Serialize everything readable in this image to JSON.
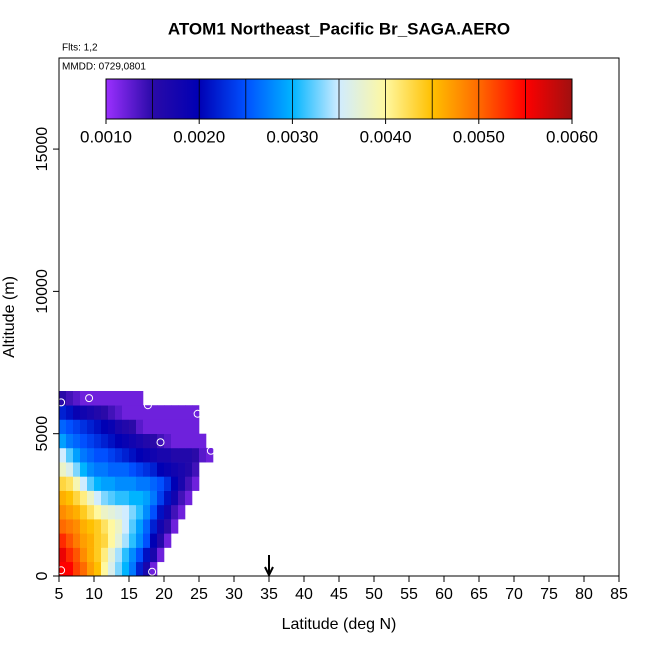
{
  "chart_data": {
    "type": "heatmap",
    "title": "ATOM1 Northeast_Pacific Br_SAGA.AERO",
    "annotations": [
      "Flts: 1,2",
      "MMDD: 0729,0801"
    ],
    "xlabel": "Latitude (deg N)",
    "ylabel": "Altitude (m)",
    "xlim": [
      5,
      85
    ],
    "ylim": [
      0,
      18200
    ],
    "xticks": [
      5,
      10,
      15,
      20,
      25,
      30,
      35,
      40,
      45,
      50,
      55,
      60,
      65,
      70,
      75,
      80,
      85
    ],
    "yticks": [
      0,
      5000,
      10000,
      15000
    ],
    "x": [
      5.5,
      6.5,
      7.5,
      8.5,
      9.5,
      10.5,
      11.5,
      12.5,
      13.5,
      14.5,
      15.5,
      16.5,
      17.5,
      18.5,
      19.5,
      20.5,
      21.5,
      22.5,
      23.5,
      24.5,
      25.5,
      26.5
    ],
    "y": [
      250,
      750,
      1250,
      1750,
      2250,
      2750,
      3250,
      3750,
      4250,
      4750,
      5250,
      5750,
      6250
    ],
    "z": [
      [
        0.0055,
        0.0055,
        0.0052,
        0.005,
        0.0047,
        0.0045,
        0.004,
        0.0036,
        0.0033,
        0.003,
        0.0027,
        0.0022,
        0.0017,
        0.0012,
        null,
        null,
        null,
        null,
        null,
        null,
        null,
        null
      ],
      [
        0.0056,
        0.0053,
        0.0051,
        0.0048,
        0.0046,
        0.0044,
        0.0041,
        0.0037,
        0.0034,
        0.0031,
        0.0028,
        0.0025,
        0.0021,
        0.0017,
        0.0012,
        null,
        null,
        null,
        null,
        null,
        null,
        null
      ],
      [
        0.0053,
        0.0051,
        0.0049,
        0.0047,
        0.0046,
        0.0044,
        0.0043,
        0.004,
        0.0037,
        0.0034,
        0.0031,
        0.0028,
        0.0025,
        0.002,
        0.0016,
        0.0012,
        null,
        null,
        null,
        null,
        null,
        null
      ],
      [
        0.005,
        0.0049,
        0.0048,
        0.0046,
        0.0045,
        0.0044,
        0.0042,
        0.004,
        0.0038,
        0.0035,
        0.0032,
        0.0029,
        0.0026,
        0.0022,
        0.0018,
        0.0015,
        0.0012,
        null,
        null,
        null,
        null,
        null
      ],
      [
        0.0048,
        0.0047,
        0.0046,
        0.0044,
        0.0042,
        0.004,
        0.0038,
        0.0037,
        0.0036,
        0.0035,
        0.0033,
        0.0031,
        0.0028,
        0.0025,
        0.0021,
        0.0018,
        0.0014,
        0.0012,
        null,
        null,
        null,
        null
      ],
      [
        0.0046,
        0.0045,
        0.0043,
        0.0041,
        0.0038,
        0.0035,
        0.0033,
        0.0032,
        0.0031,
        0.0031,
        0.003,
        0.003,
        0.0029,
        0.0027,
        0.0024,
        0.0021,
        0.0018,
        0.0014,
        0.0012,
        null,
        null,
        null
      ],
      [
        0.0043,
        0.0042,
        0.0039,
        0.0035,
        0.0032,
        0.003,
        0.0029,
        0.0029,
        0.0028,
        0.0028,
        0.0028,
        0.0027,
        0.0027,
        0.0026,
        0.0025,
        0.0023,
        0.002,
        0.0017,
        0.0014,
        0.0012,
        null,
        null
      ],
      [
        0.0038,
        0.0036,
        0.0033,
        0.003,
        0.0028,
        0.0027,
        0.0027,
        0.0026,
        0.0026,
        0.0026,
        0.0025,
        0.0024,
        0.0023,
        0.0022,
        0.002,
        0.0019,
        0.0018,
        0.0017,
        0.0016,
        0.0014,
        null,
        null
      ],
      [
        0.0035,
        0.0032,
        0.0029,
        0.0027,
        0.0026,
        0.0025,
        0.0025,
        0.0024,
        0.0023,
        0.0022,
        0.0021,
        0.002,
        0.0019,
        0.0018,
        0.0017,
        0.0017,
        0.0016,
        0.0016,
        0.0016,
        0.0015,
        0.0013,
        0.0012
      ],
      [
        0.0029,
        0.0027,
        0.0026,
        0.0025,
        0.0024,
        0.0023,
        0.0022,
        0.0021,
        0.002,
        0.0019,
        0.0018,
        0.0017,
        0.0016,
        0.0015,
        0.0014,
        0.0013,
        0.0012,
        0.0012,
        0.0012,
        0.0012,
        0.0012,
        null
      ],
      [
        0.0026,
        0.0025,
        0.0024,
        0.0023,
        0.0022,
        0.0021,
        0.002,
        0.0019,
        0.0017,
        0.0016,
        0.0015,
        0.0013,
        0.0012,
        0.0012,
        0.0012,
        0.0012,
        0.0012,
        0.0012,
        0.0012,
        0.0012,
        null,
        null
      ],
      [
        0.0022,
        0.0021,
        0.0019,
        0.0018,
        0.0017,
        0.0016,
        0.0015,
        0.0014,
        0.0013,
        0.0012,
        0.0012,
        0.0012,
        0.0012,
        0.0012,
        0.0012,
        0.0012,
        0.0012,
        0.0012,
        0.0012,
        0.0012,
        null,
        null
      ],
      [
        0.0015,
        0.0014,
        0.0013,
        0.0012,
        0.0012,
        0.0012,
        0.0012,
        0.0012,
        0.0012,
        0.0012,
        0.0012,
        0.0012,
        null,
        null,
        null,
        null,
        null,
        null,
        null,
        null,
        null,
        null
      ]
    ],
    "zlim": [
      0.001,
      0.006
    ],
    "zticks": [
      {
        "value": 0.001,
        "label": "0.0010"
      },
      {
        "value": 0.002,
        "label": "0.0020"
      },
      {
        "value": 0.003,
        "label": "0.0030"
      },
      {
        "value": 0.004,
        "label": "0.0040"
      },
      {
        "value": 0.005,
        "label": "0.0050"
      },
      {
        "value": 0.006,
        "label": "0.0060"
      }
    ],
    "colorscale": [
      "#9b30ff",
      "#2a0aa8",
      "#0000b4",
      "#0050ff",
      "#00b4ff",
      "#d0ecff",
      "#fff8a0",
      "#ffc000",
      "#ff6a00",
      "#ff0000",
      "#a01010"
    ],
    "points": {
      "x": [
        5.3,
        18.3,
        5.3,
        9.3,
        17.7,
        24.8,
        19.5,
        26.7
      ],
      "y": [
        200,
        150,
        6100,
        6250,
        6000,
        5700,
        4700,
        4400
      ]
    },
    "arrow_x": 35
  }
}
